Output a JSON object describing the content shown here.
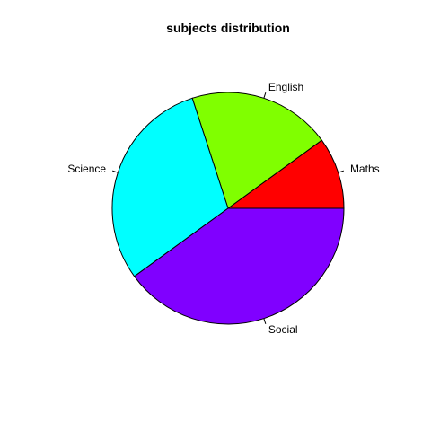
{
  "chart_data": {
    "type": "pie",
    "title": "subjects distribution",
    "categories": [
      "Maths",
      "English",
      "Science",
      "Social"
    ],
    "values": [
      10,
      20,
      30,
      40
    ],
    "colors": [
      "#FF0000",
      "#80FF00",
      "#00FFFF",
      "#8000FF"
    ],
    "start_angle_deg": 0,
    "direction": "counterclockwise",
    "legend": "none"
  }
}
